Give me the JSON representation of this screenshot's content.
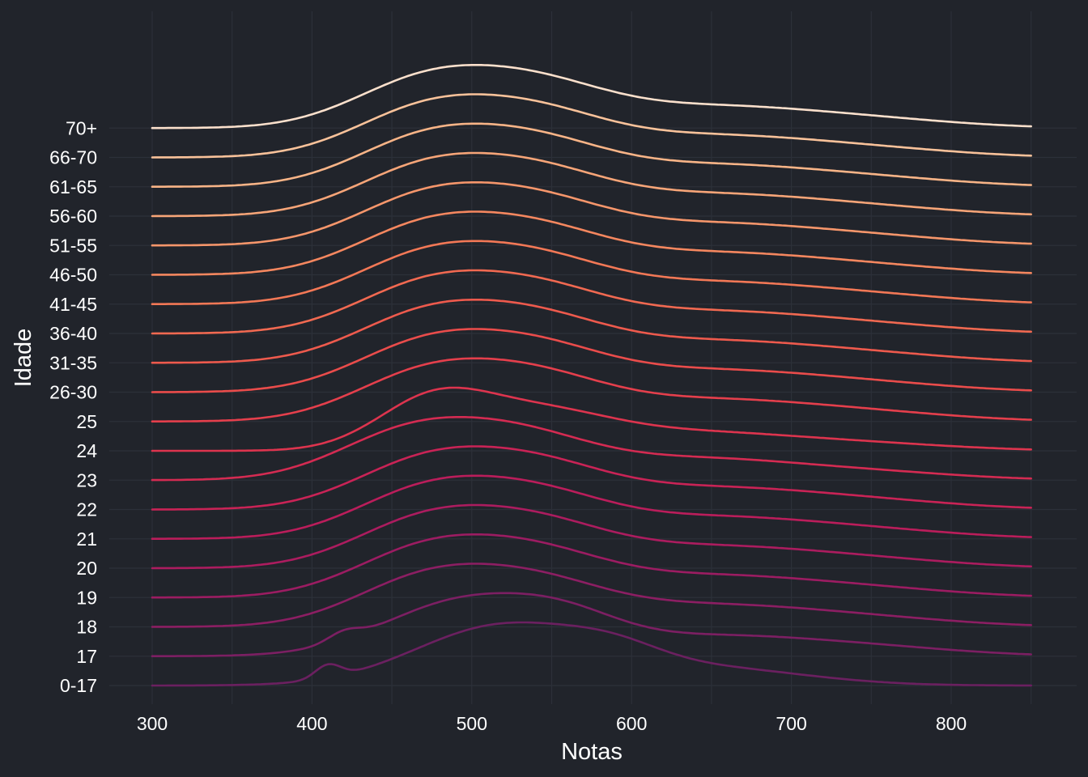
{
  "chart_data": {
    "type": "ridgeline",
    "xlabel": "Notas",
    "ylabel": "Idade",
    "xlim": [
      272,
      1330
    ],
    "xticks": [
      300,
      400,
      500,
      600,
      700,
      800
    ],
    "x_range": [
      300,
      850
    ],
    "grid": true,
    "legend": "none",
    "background": "#21242b",
    "grid_color": "#2c3039",
    "text_color": "#ffffff",
    "series": [
      {
        "name": "0-17",
        "color": "#6b2060",
        "peaks": [
          [
            410,
            8,
            0.22
          ],
          [
            520,
            55,
            1.0
          ],
          [
            590,
            30,
            0.25
          ],
          [
            650,
            60,
            0.28
          ]
        ]
      },
      {
        "name": "17",
        "color": "#7c1f63",
        "peaks": [
          [
            420,
            10,
            0.15
          ],
          [
            495,
            50,
            0.95
          ],
          [
            560,
            35,
            0.4
          ],
          [
            650,
            70,
            0.35
          ],
          [
            760,
            55,
            0.1
          ]
        ]
      },
      {
        "name": "18",
        "color": "#8c1e63",
        "peaks": [
          [
            470,
            45,
            0.85
          ],
          [
            540,
            45,
            0.7
          ],
          [
            650,
            70,
            0.4
          ],
          [
            760,
            55,
            0.1
          ]
        ]
      },
      {
        "name": "19",
        "color": "#9c1c62",
        "peaks": [
          [
            470,
            45,
            0.85
          ],
          [
            540,
            45,
            0.7
          ],
          [
            650,
            70,
            0.4
          ],
          [
            760,
            55,
            0.1
          ]
        ]
      },
      {
        "name": "20",
        "color": "#ac1c5f",
        "peaks": [
          [
            470,
            45,
            0.85
          ],
          [
            540,
            45,
            0.7
          ],
          [
            650,
            70,
            0.4
          ],
          [
            760,
            55,
            0.1
          ]
        ]
      },
      {
        "name": "21",
        "color": "#bb1d5b",
        "peaks": [
          [
            470,
            45,
            0.85
          ],
          [
            540,
            45,
            0.7
          ],
          [
            650,
            70,
            0.4
          ],
          [
            760,
            55,
            0.1
          ]
        ]
      },
      {
        "name": "22",
        "color": "#c92356",
        "peaks": [
          [
            470,
            45,
            0.85
          ],
          [
            540,
            45,
            0.7
          ],
          [
            650,
            70,
            0.4
          ],
          [
            760,
            55,
            0.1
          ]
        ]
      },
      {
        "name": "23",
        "color": "#d42b52",
        "peaks": [
          [
            460,
            45,
            0.85
          ],
          [
            530,
            45,
            0.7
          ],
          [
            640,
            70,
            0.4
          ],
          [
            760,
            55,
            0.1
          ]
        ]
      },
      {
        "name": "24",
        "color": "#dd344e",
        "peaks": [
          [
            475,
            35,
            1.05
          ],
          [
            540,
            45,
            0.75
          ],
          [
            640,
            70,
            0.4
          ],
          [
            760,
            55,
            0.1
          ]
        ]
      },
      {
        "name": "25",
        "color": "#e53f4c",
        "peaks": [
          [
            470,
            45,
            0.85
          ],
          [
            540,
            45,
            0.7
          ],
          [
            650,
            70,
            0.4
          ],
          [
            760,
            55,
            0.1
          ]
        ]
      },
      {
        "name": "26-30",
        "color": "#ea4c4b",
        "peaks": [
          [
            470,
            45,
            0.85
          ],
          [
            540,
            45,
            0.7
          ],
          [
            650,
            70,
            0.4
          ],
          [
            760,
            55,
            0.1
          ]
        ]
      },
      {
        "name": "31-35",
        "color": "#ee5a4d",
        "peaks": [
          [
            470,
            45,
            0.85
          ],
          [
            540,
            45,
            0.7
          ],
          [
            650,
            70,
            0.4
          ],
          [
            760,
            55,
            0.1
          ]
        ]
      },
      {
        "name": "36-40",
        "color": "#f16951",
        "peaks": [
          [
            470,
            45,
            0.85
          ],
          [
            540,
            45,
            0.7
          ],
          [
            650,
            70,
            0.4
          ],
          [
            760,
            55,
            0.1
          ]
        ]
      },
      {
        "name": "41-45",
        "color": "#f37856",
        "peaks": [
          [
            470,
            45,
            0.85
          ],
          [
            540,
            45,
            0.7
          ],
          [
            650,
            70,
            0.4
          ],
          [
            760,
            55,
            0.1
          ]
        ]
      },
      {
        "name": "46-50",
        "color": "#f5875f",
        "peaks": [
          [
            470,
            45,
            0.85
          ],
          [
            540,
            45,
            0.7
          ],
          [
            650,
            70,
            0.4
          ],
          [
            760,
            55,
            0.1
          ]
        ]
      },
      {
        "name": "51-55",
        "color": "#f6966b",
        "peaks": [
          [
            470,
            45,
            0.85
          ],
          [
            540,
            45,
            0.7
          ],
          [
            650,
            70,
            0.4
          ],
          [
            760,
            55,
            0.1
          ]
        ]
      },
      {
        "name": "56-60",
        "color": "#f7a578",
        "peaks": [
          [
            470,
            45,
            0.85
          ],
          [
            540,
            45,
            0.7
          ],
          [
            650,
            70,
            0.4
          ],
          [
            760,
            55,
            0.1
          ]
        ]
      },
      {
        "name": "61-65",
        "color": "#f8b487",
        "peaks": [
          [
            470,
            45,
            0.85
          ],
          [
            540,
            45,
            0.7
          ],
          [
            650,
            70,
            0.4
          ],
          [
            760,
            55,
            0.1
          ]
        ]
      },
      {
        "name": "66-70",
        "color": "#f9c29a",
        "peaks": [
          [
            470,
            45,
            0.85
          ],
          [
            540,
            45,
            0.7
          ],
          [
            650,
            70,
            0.4
          ],
          [
            760,
            55,
            0.1
          ]
        ]
      },
      {
        "name": "70+",
        "color": "#fbe0cc",
        "peaks": [
          [
            470,
            45,
            0.85
          ],
          [
            540,
            45,
            0.7
          ],
          [
            650,
            70,
            0.4
          ],
          [
            760,
            55,
            0.1
          ]
        ]
      }
    ]
  }
}
